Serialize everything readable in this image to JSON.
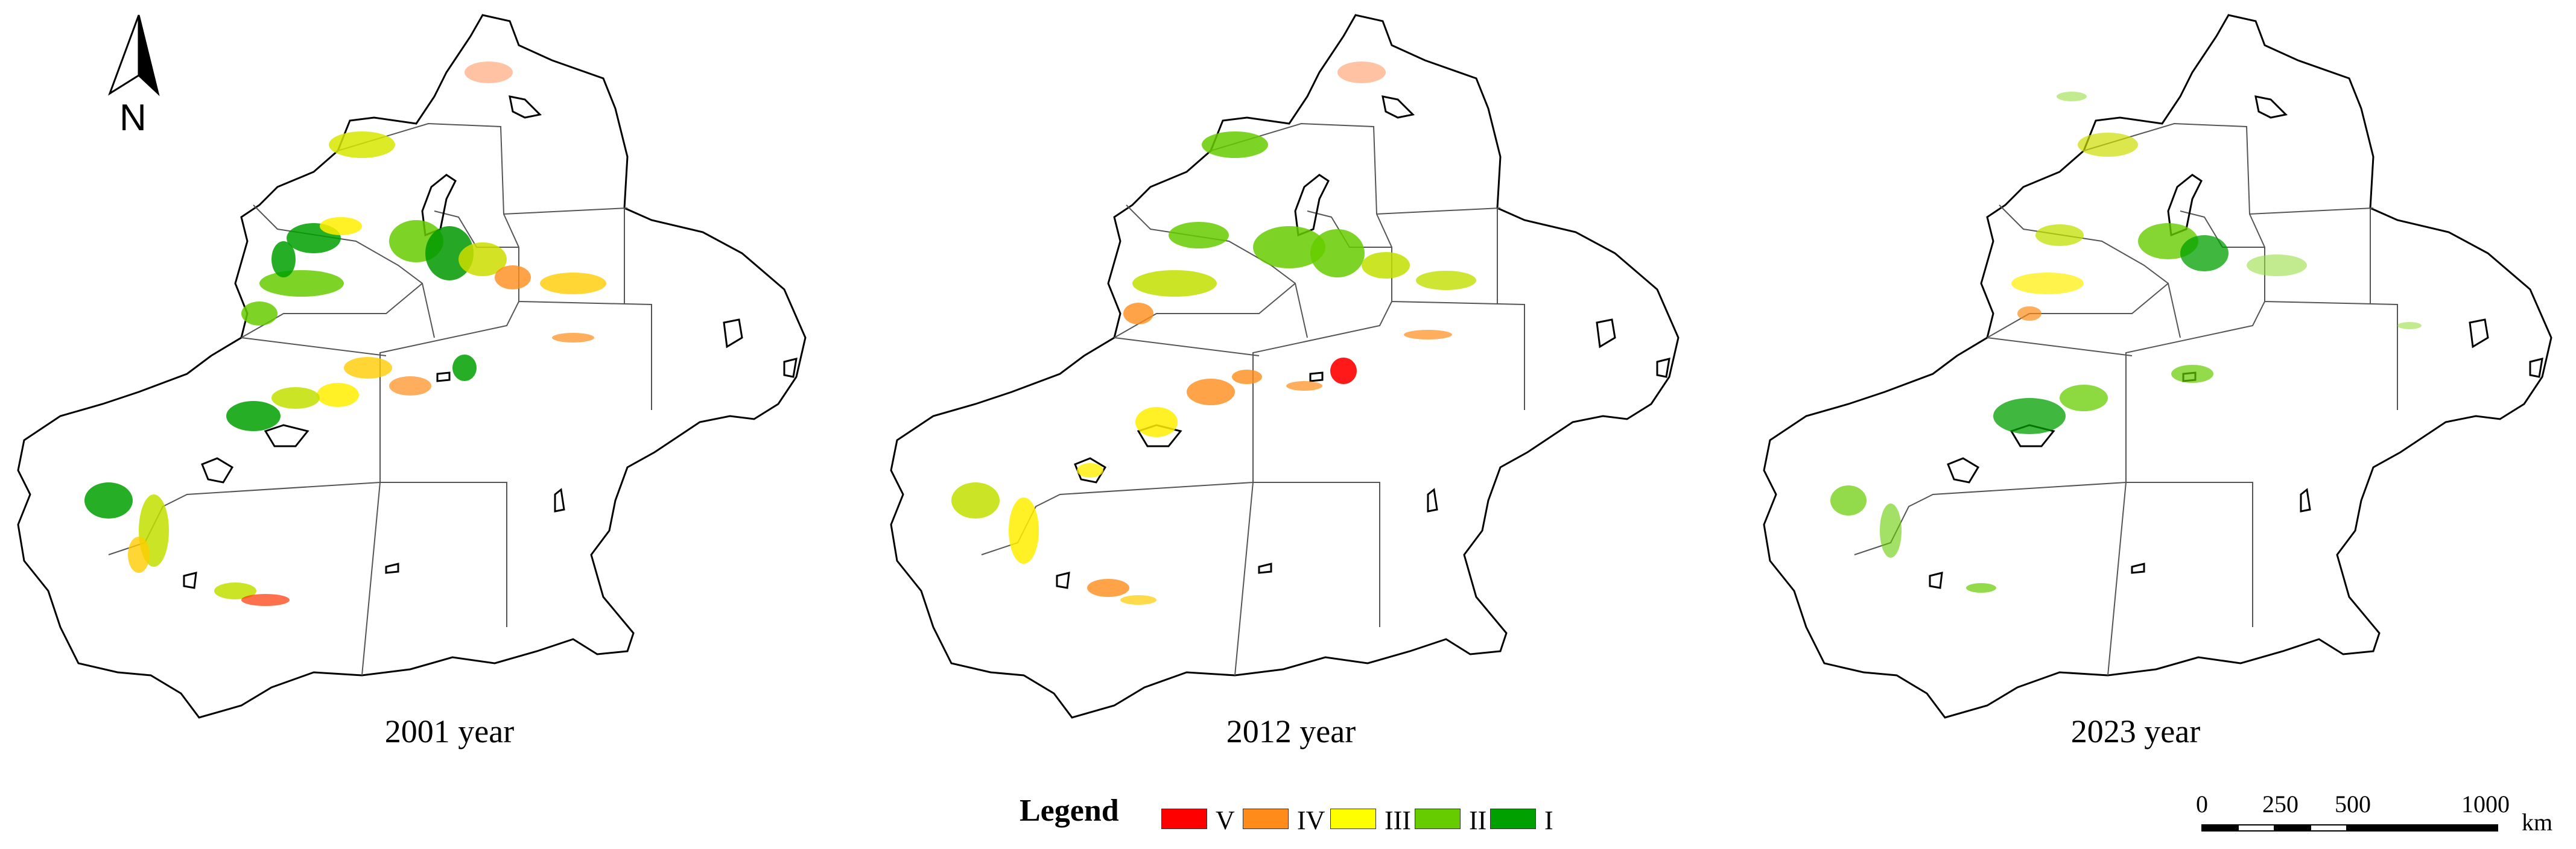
{
  "maps": [
    {
      "year_label": "2001 year"
    },
    {
      "year_label": "2012 year"
    },
    {
      "year_label": "2023 year"
    }
  ],
  "north_arrow": {
    "label": "N",
    "icon": "north-arrow-icon"
  },
  "legend": {
    "title": "Legend",
    "items": [
      {
        "label": "V",
        "color": "#ff0000"
      },
      {
        "label": "IV",
        "color": "#ff8c1a"
      },
      {
        "label": "III",
        "color": "#ffff00"
      },
      {
        "label": "II",
        "color": "#66cc00"
      },
      {
        "label": "I",
        "color": "#00a000"
      }
    ]
  },
  "scale_bar": {
    "ticks": [
      "0",
      "250",
      "500",
      "1000"
    ],
    "unit": "km"
  }
}
